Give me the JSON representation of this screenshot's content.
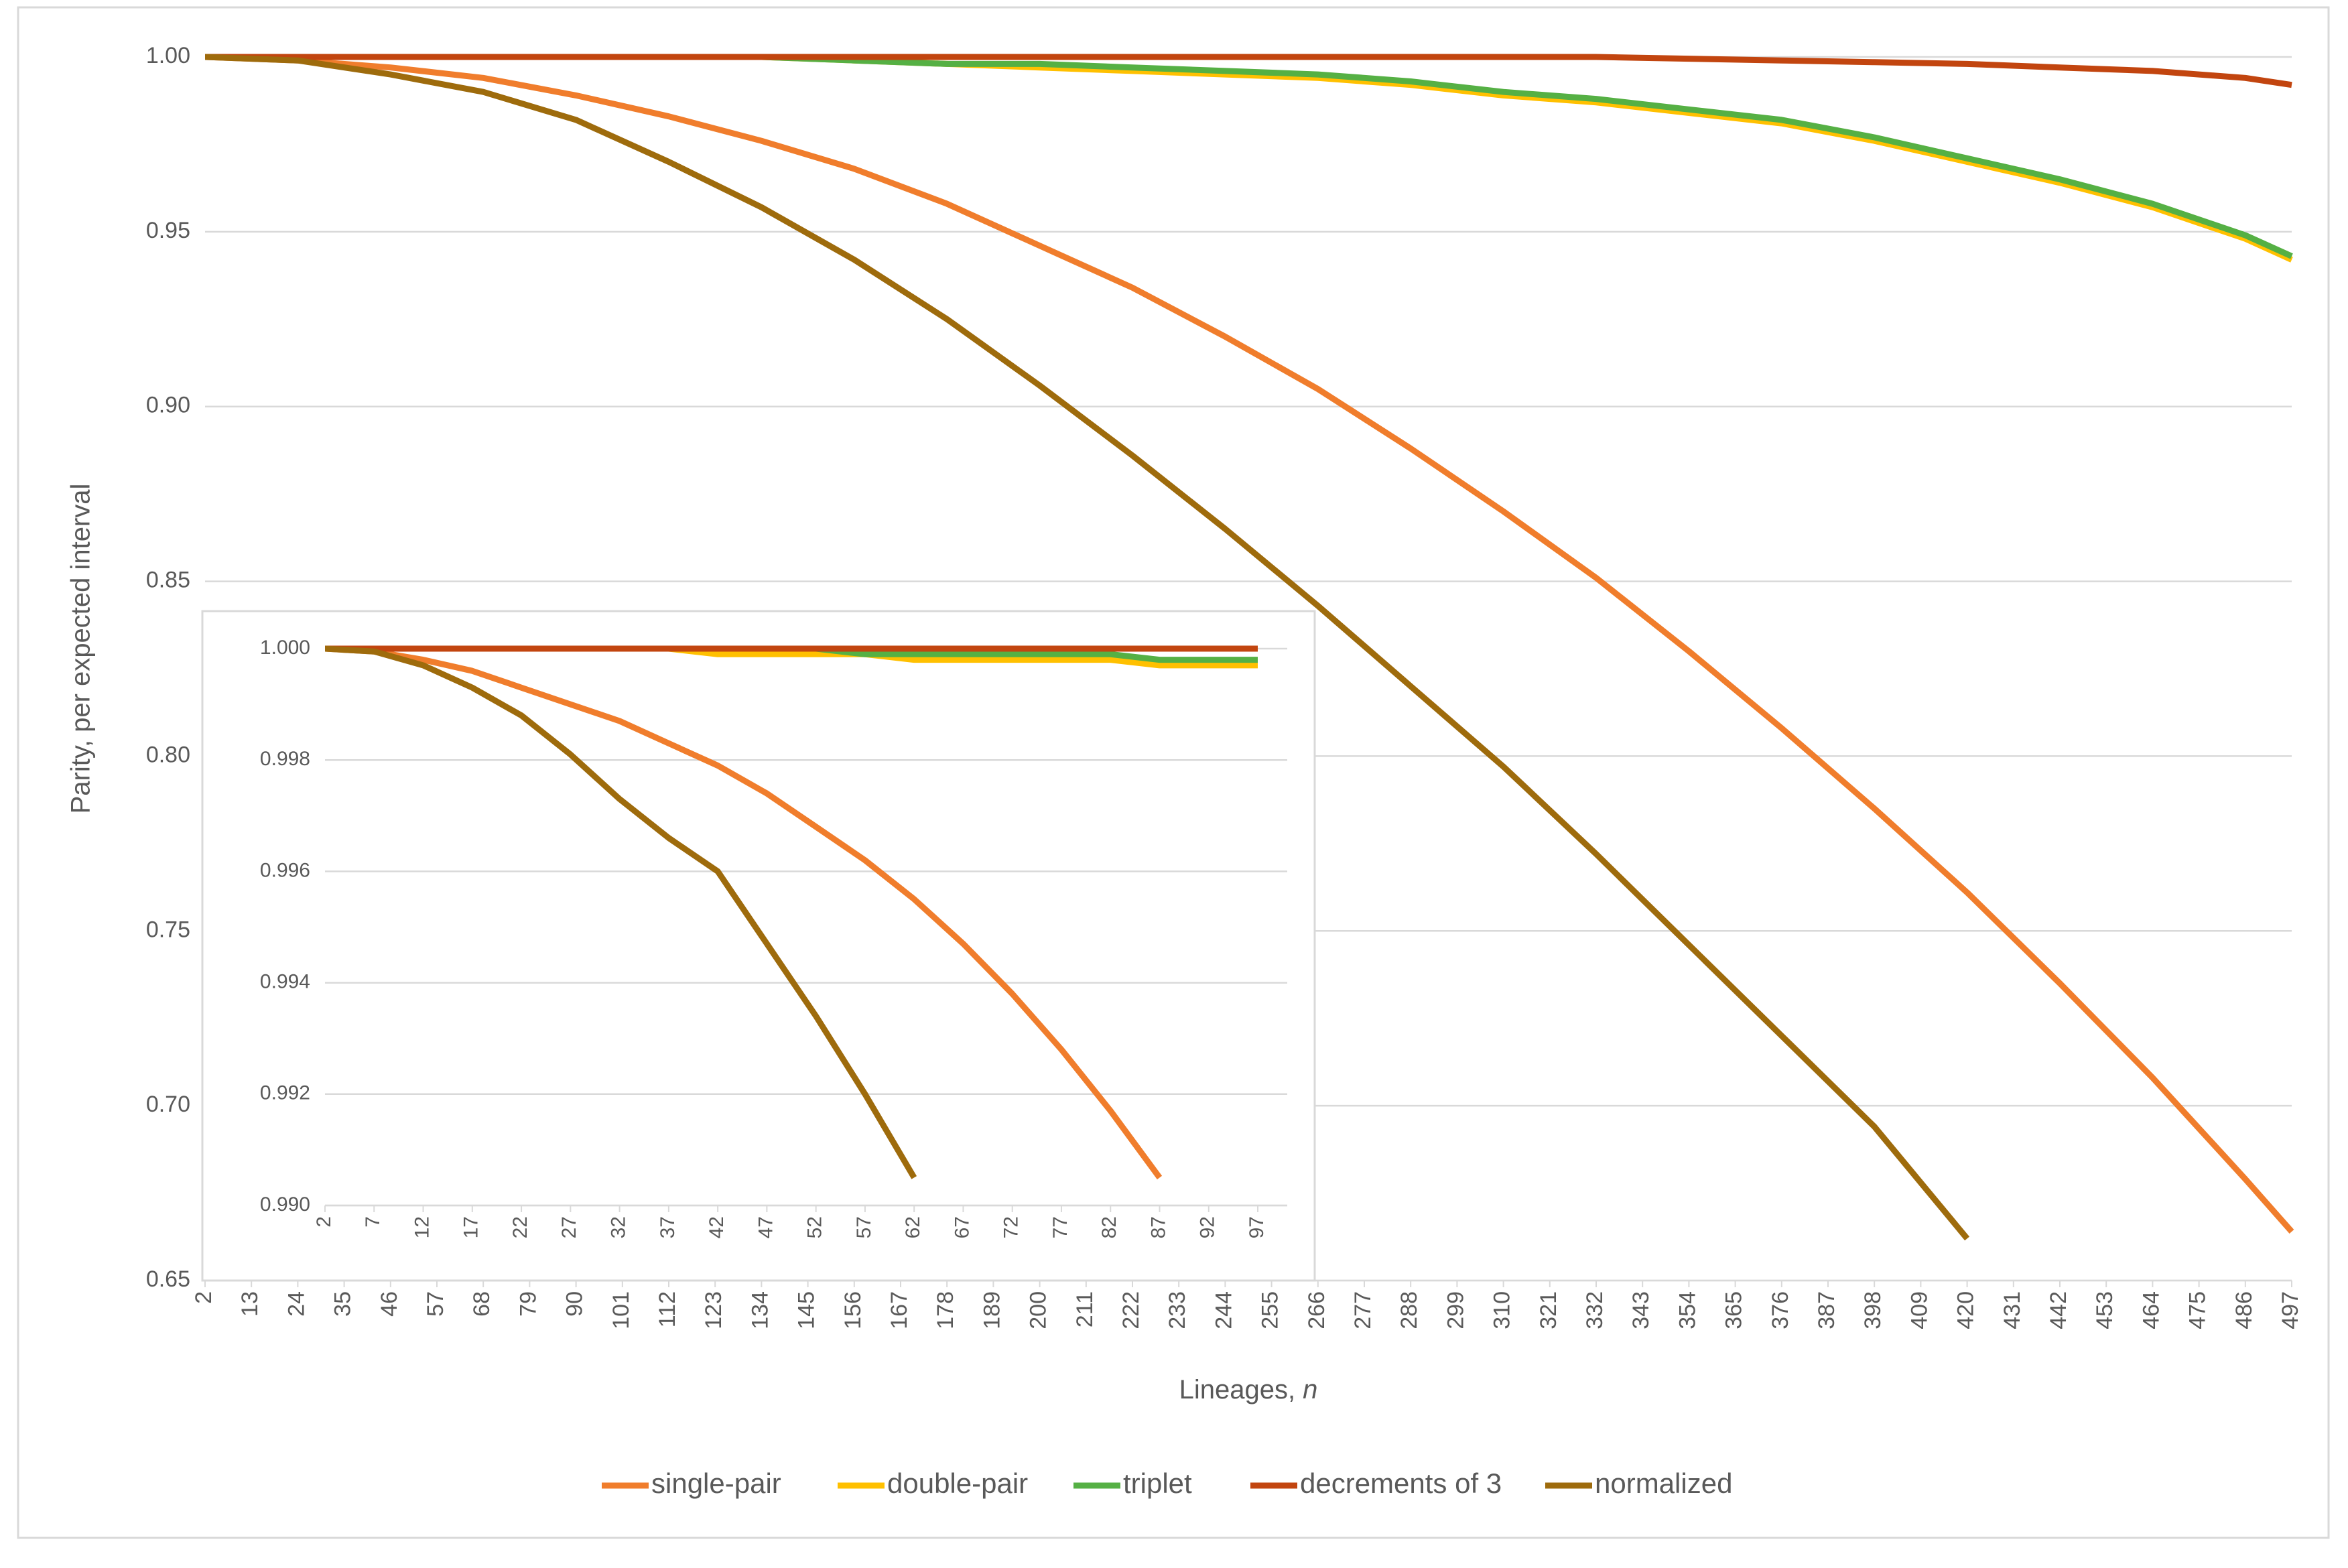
{
  "chart_data": [
    {
      "type": "line",
      "x_label": "Lineages, ",
      "x_label_italic": "n",
      "y_label": "Parity, per expected interval",
      "x": [
        2,
        24,
        46,
        68,
        90,
        112,
        134,
        156,
        178,
        200,
        222,
        244,
        266,
        288,
        310,
        332,
        354,
        376,
        398,
        420,
        442,
        464,
        486,
        497
      ],
      "xlim": [
        2,
        497
      ],
      "xticks": [
        2,
        13,
        24,
        35,
        46,
        57,
        68,
        79,
        90,
        101,
        112,
        123,
        134,
        145,
        156,
        167,
        178,
        189,
        200,
        211,
        222,
        233,
        244,
        255,
        266,
        277,
        288,
        299,
        310,
        321,
        332,
        343,
        354,
        365,
        376,
        387,
        398,
        409,
        420,
        431,
        442,
        453,
        464,
        475,
        486,
        497
      ],
      "ylim": [
        0.65,
        1.0
      ],
      "yticks": [
        {
          "value": 0.65,
          "label": "0.65"
        },
        {
          "value": 0.7,
          "label": "0.70"
        },
        {
          "value": 0.75,
          "label": "0.75"
        },
        {
          "value": 0.8,
          "label": "0.80"
        },
        {
          "value": 0.85,
          "label": "0.85"
        },
        {
          "value": 0.9,
          "label": "0.90"
        },
        {
          "value": 0.95,
          "label": "0.95"
        },
        {
          "value": 1.0,
          "label": "1.00"
        }
      ],
      "grid": true,
      "legend": "bottom",
      "series": [
        {
          "name": "single-pair",
          "color": "#f07d2c",
          "values": [
            1.0,
            0.999,
            0.997,
            0.994,
            0.989,
            0.983,
            0.976,
            0.968,
            0.958,
            0.946,
            0.934,
            0.92,
            0.905,
            0.888,
            0.87,
            0.851,
            0.83,
            0.808,
            0.785,
            0.761,
            0.735,
            0.708,
            0.679,
            0.664
          ]
        },
        {
          "name": "double-pair",
          "color": "#ffc000",
          "values": [
            1.0,
            1.0,
            1.0,
            1.0,
            1.0,
            1.0,
            1.0,
            0.999,
            0.998,
            0.997,
            0.996,
            0.995,
            0.994,
            0.992,
            0.989,
            0.987,
            0.984,
            0.981,
            0.976,
            0.97,
            0.964,
            0.957,
            0.948,
            0.942
          ]
        },
        {
          "name": "triplet",
          "color": "#55b044",
          "values": [
            1.0,
            1.0,
            1.0,
            1.0,
            1.0,
            1.0,
            1.0,
            0.999,
            0.998,
            0.998,
            0.997,
            0.996,
            0.995,
            0.993,
            0.99,
            0.988,
            0.985,
            0.982,
            0.977,
            0.971,
            0.965,
            0.958,
            0.949,
            0.943
          ]
        },
        {
          "name": "decrements of 3",
          "color": "#c2450f",
          "values": [
            1.0,
            1.0,
            1.0,
            1.0,
            1.0,
            1.0,
            1.0,
            1.0,
            1.0,
            1.0,
            1.0,
            1.0,
            1.0,
            1.0,
            1.0,
            1.0,
            0.9995,
            0.999,
            0.9985,
            0.998,
            0.997,
            0.996,
            0.994,
            0.992
          ]
        },
        {
          "name": "normalized",
          "color": "#9e6b0c",
          "values": [
            1.0,
            0.999,
            0.995,
            0.99,
            0.982,
            0.97,
            0.957,
            0.942,
            0.925,
            0.906,
            0.886,
            0.865,
            0.843,
            0.82,
            0.797,
            0.772,
            0.746,
            0.72,
            0.694,
            0.662,
            null,
            null,
            null,
            null
          ]
        }
      ]
    },
    {
      "type": "line",
      "x": [
        2,
        7,
        12,
        17,
        22,
        27,
        32,
        37,
        42,
        47,
        52,
        57,
        62,
        67,
        72,
        77,
        82,
        87,
        92,
        97
      ],
      "xlim": [
        2,
        100
      ],
      "xticks": [
        2,
        7,
        12,
        17,
        22,
        27,
        32,
        37,
        42,
        47,
        52,
        57,
        62,
        67,
        72,
        77,
        82,
        87,
        92,
        97
      ],
      "ylim": [
        0.99,
        1.0
      ],
      "yticks": [
        {
          "value": 0.99,
          "label": "0.990"
        },
        {
          "value": 0.992,
          "label": "0.992"
        },
        {
          "value": 0.994,
          "label": "0.994"
        },
        {
          "value": 0.996,
          "label": "0.996"
        },
        {
          "value": 0.998,
          "label": "0.998"
        },
        {
          "value": 1.0,
          "label": "1.000"
        }
      ],
      "grid": true,
      "series": [
        {
          "color": "#f07d2c",
          "values": [
            1.0,
            0.99995,
            0.9998,
            0.9996,
            0.9993,
            0.999,
            0.9987,
            0.9983,
            0.9979,
            0.9974,
            0.9968,
            0.9962,
            0.9955,
            0.9947,
            0.9938,
            0.9928,
            0.9917,
            0.9905,
            null,
            null
          ]
        },
        {
          "color": "#ffc000",
          "values": [
            1.0,
            1.0,
            1.0,
            1.0,
            1.0,
            1.0,
            1.0,
            1.0,
            0.9999,
            0.9999,
            0.9999,
            0.9999,
            0.9998,
            0.9998,
            0.9998,
            0.9998,
            0.9998,
            0.9997,
            0.9997,
            0.9997
          ]
        },
        {
          "color": "#55b044",
          "values": [
            1.0,
            1.0,
            1.0,
            1.0,
            1.0,
            1.0,
            1.0,
            1.0,
            1.0,
            1.0,
            1.0,
            0.9999,
            0.9999,
            0.9999,
            0.9999,
            0.9999,
            0.9999,
            0.9998,
            0.9998,
            0.9998
          ]
        },
        {
          "color": "#c2450f",
          "values": [
            1.0,
            1.0,
            1.0,
            1.0,
            1.0,
            1.0,
            1.0,
            1.0,
            1.0,
            1.0,
            1.0,
            1.0,
            1.0,
            1.0,
            1.0,
            1.0,
            1.0,
            1.0,
            1.0,
            1.0
          ]
        },
        {
          "color": "#9e6b0c",
          "values": [
            1.0,
            0.99995,
            0.9997,
            0.9993,
            0.9988,
            0.9981,
            0.9973,
            0.9966,
            0.996,
            0.9947,
            0.9934,
            0.992,
            0.9905,
            null,
            null,
            null,
            null,
            null,
            null,
            null
          ]
        }
      ]
    }
  ]
}
